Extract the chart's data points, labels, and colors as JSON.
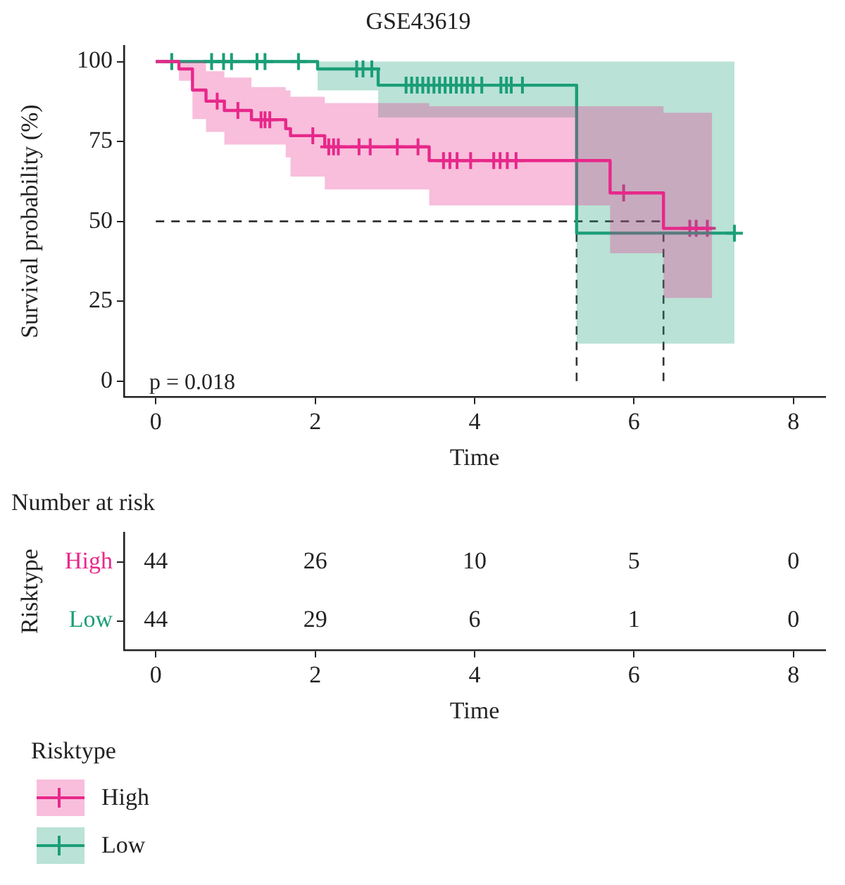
{
  "chart_data": [
    {
      "type": "step",
      "title": "GSE43619",
      "xlabel": "Time",
      "ylabel": "Survival probability (%)",
      "legend_title": "Risktype",
      "legend": "bottom",
      "grid": false,
      "xlim": [
        -0.4,
        8.4
      ],
      "xticks": [
        0,
        2,
        4,
        6,
        8
      ],
      "ylim": [
        -5,
        105
      ],
      "yticks": [
        0,
        25,
        50,
        75,
        100
      ],
      "series": [
        {
          "name": "High",
          "type": "step",
          "color": "#e7298a",
          "marker": "none",
          "x": [
            0,
            0.29,
            0.46,
            0.63,
            0.86,
            1.2,
            1.63,
            1.69,
            2.12,
            3.43,
            5.7,
            6.37,
            6.98
          ],
          "values": [
            100,
            97.7,
            91.1,
            87.6,
            84.7,
            81.8,
            79,
            76.8,
            73.3,
            69,
            58.9,
            47.8,
            47.8
          ],
          "lower": [
            100,
            94,
            82,
            78,
            74,
            74,
            70,
            64,
            60,
            55,
            40,
            26,
            26
          ],
          "upper": [
            100,
            100,
            100,
            97,
            95,
            92,
            91,
            89,
            87,
            86,
            86,
            84,
            84
          ]
        },
        {
          "name": "Low",
          "type": "step",
          "color": "#1b9e77",
          "marker": "none",
          "x": [
            0,
            2.03,
            2.79,
            5.28,
            7.26
          ],
          "values": [
            100,
            97.7,
            92.6,
            46.3,
            46.3
          ],
          "lower": [
            100,
            91,
            82.5,
            11.7,
            11.7
          ],
          "upper": [
            100,
            100,
            100,
            100,
            100
          ]
        },
        {
          "type": "scatter",
          "color": "#e7298a",
          "marker": "cross",
          "x": [
            0.77,
            1.03,
            1.32,
            1.37,
            1.43,
            1.97,
            2.17,
            2.23,
            2.29,
            2.55,
            2.69,
            3.03,
            3.29,
            3.61,
            3.69,
            3.78,
            3.95,
            4.24,
            4.32,
            4.41,
            4.52,
            5.87,
            6.7,
            6.78,
            6.92
          ],
          "values": [
            87.6,
            84.7,
            81.8,
            81.8,
            81.8,
            76.8,
            73.3,
            73.3,
            73.3,
            73.3,
            73.3,
            73.3,
            73.3,
            69,
            69,
            69,
            69,
            69,
            69,
            69,
            69,
            58.9,
            47.8,
            47.8,
            47.8
          ]
        },
        {
          "type": "scatter",
          "color": "#1b9e77",
          "marker": "cross",
          "x": [
            0.2,
            0.7,
            0.85,
            0.95,
            1.27,
            1.37,
            1.79,
            2.52,
            2.6,
            2.71,
            3.14,
            3.21,
            3.28,
            3.35,
            3.42,
            3.49,
            3.56,
            3.63,
            3.7,
            3.77,
            3.84,
            3.91,
            3.98,
            4.09,
            4.33,
            4.4,
            4.46,
            4.6,
            7.26
          ],
          "values": [
            100,
            100,
            100,
            100,
            100,
            100,
            100,
            97.7,
            97.7,
            97.7,
            92.6,
            92.6,
            92.6,
            92.6,
            92.6,
            92.6,
            92.6,
            92.6,
            92.6,
            92.6,
            92.6,
            92.6,
            92.6,
            92.6,
            92.6,
            92.6,
            92.6,
            92.6,
            46.3
          ]
        }
      ],
      "ref_lines": [
        {
          "axis": "y",
          "value": 50,
          "line_style": "dashed",
          "color": "#333333"
        },
        {
          "axis": "x",
          "value": 5.28,
          "line_style": "dashed",
          "color": "#333333"
        },
        {
          "axis": "x",
          "value": 6.37,
          "line_style": "dashed",
          "color": "#333333"
        }
      ],
      "annotations": [
        "p = 0.018"
      ]
    },
    {
      "type": "heatmap",
      "title": "Number at risk",
      "xlabel": "Time",
      "ylabel": "Risktype",
      "data_labels": true,
      "categories": [
        "0",
        "2",
        "4",
        "6",
        "8"
      ],
      "y_categories": [
        "High",
        "Low"
      ],
      "cells": [
        [
          44,
          26,
          10,
          5,
          0
        ],
        [
          44,
          29,
          6,
          1,
          0
        ]
      ]
    }
  ]
}
